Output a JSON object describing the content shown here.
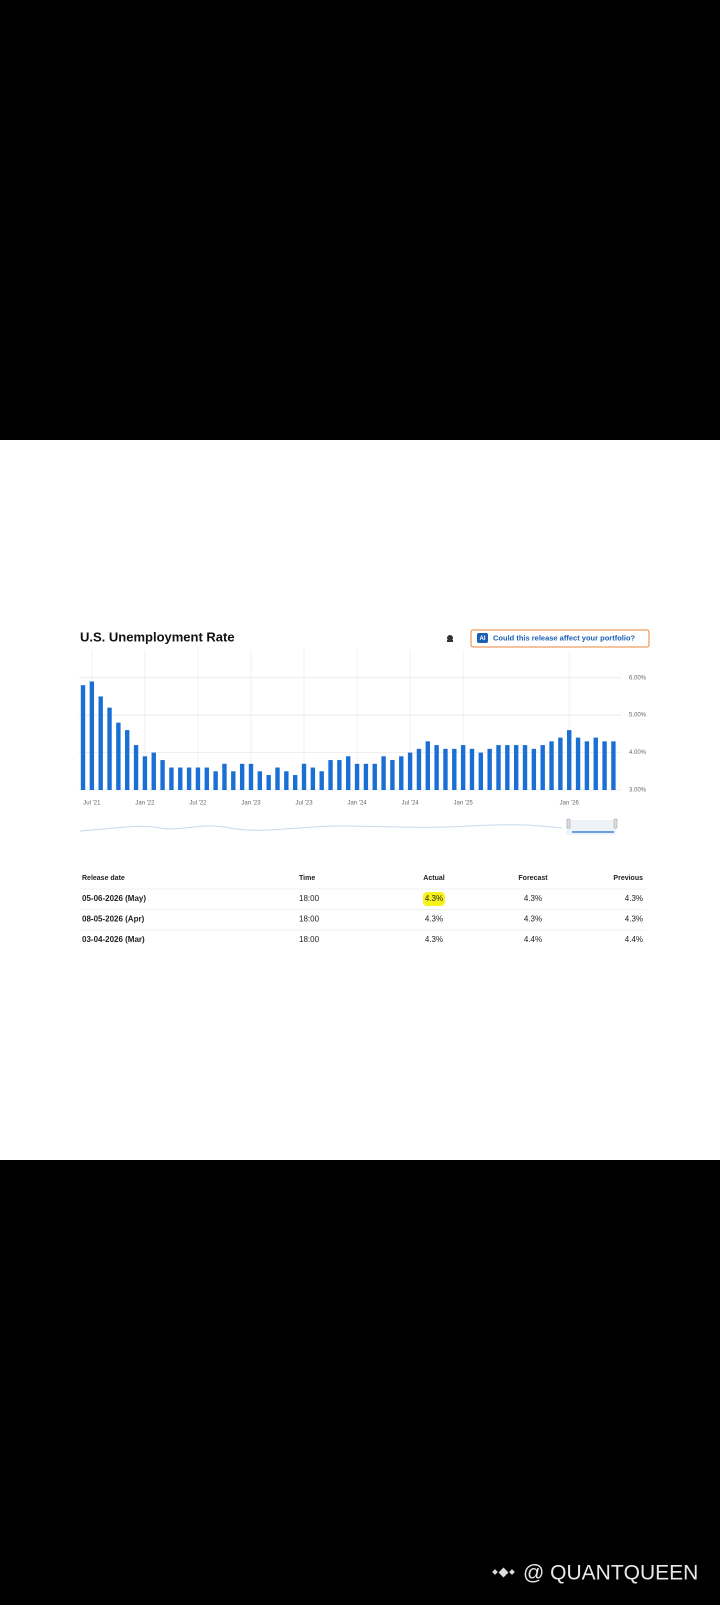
{
  "header": {
    "ai_badge": "AI",
    "button": "Could this release affect your portfolio?"
  },
  "chart_data": {
    "type": "bar",
    "title": "U.S. Unemployment Rate",
    "color": "#1a6fd4",
    "grid": true,
    "categories": [
      null,
      "Jul '21",
      null,
      null,
      null,
      null,
      null,
      "Jan '22",
      null,
      null,
      null,
      null,
      null,
      "Jul '22",
      null,
      null,
      null,
      null,
      null,
      "Jan '23",
      null,
      null,
      null,
      null,
      null,
      "Jul '23",
      null,
      null,
      null,
      null,
      null,
      "Jan '24",
      null,
      null,
      null,
      null,
      null,
      "Jul '24",
      null,
      null,
      null,
      null,
      null,
      "Jan '25",
      null,
      null,
      null,
      null,
      null,
      null,
      null,
      null,
      null,
      null,
      null,
      "Jan '26",
      null,
      null,
      null,
      null,
      null
    ],
    "values": [
      5.8,
      5.9,
      5.5,
      5.2,
      4.8,
      4.6,
      4.2,
      3.9,
      4.0,
      3.8,
      3.6,
      3.6,
      3.6,
      3.6,
      3.6,
      3.5,
      3.7,
      3.5,
      3.7,
      3.7,
      3.5,
      3.4,
      3.6,
      3.5,
      3.4,
      3.7,
      3.6,
      3.5,
      3.8,
      3.8,
      3.9,
      3.7,
      3.7,
      3.7,
      3.9,
      3.8,
      3.9,
      4.0,
      4.1,
      4.3,
      4.2,
      4.1,
      4.1,
      4.2,
      4.1,
      4.0,
      4.1,
      4.2,
      4.2,
      4.2,
      4.2,
      4.1,
      4.2,
      4.3,
      4.4,
      4.6,
      4.4,
      4.3,
      4.4,
      4.3,
      4.3
    ],
    "ylim": [
      3,
      6.5
    ],
    "yticks": [
      {
        "value": 3,
        "label": "3.00%"
      },
      {
        "value": 4,
        "label": "4.00%"
      },
      {
        "value": 5,
        "label": "5.00%"
      },
      {
        "value": 6,
        "label": "6.00%"
      }
    ]
  },
  "table": {
    "columns": [
      "Release date",
      "Time",
      "Actual",
      "Forecast",
      "Previous"
    ],
    "rows": [
      [
        "05-06-2026 (May)",
        "18:00",
        "4.3%",
        "4.3%",
        "4.3%"
      ],
      [
        "08-05-2026 (Apr)",
        "18:00",
        "4.3%",
        "4.3%",
        "4.3%"
      ],
      [
        "03-04-2026 (Mar)",
        "18:00",
        "4.3%",
        "4.4%",
        "4.4%"
      ]
    ]
  },
  "watermark": "@ QUANTQUEEN"
}
